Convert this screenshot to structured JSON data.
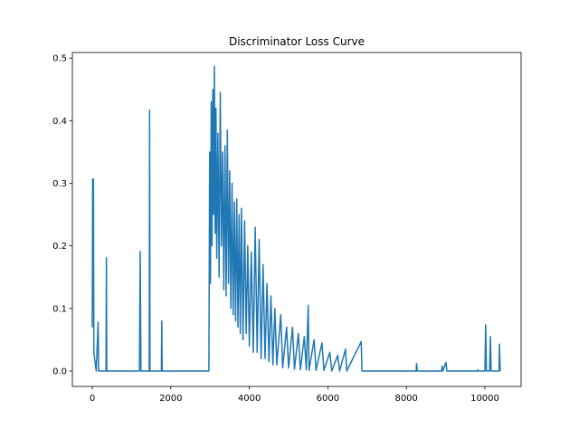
{
  "chart_data": {
    "type": "line",
    "title": "Discriminator Loss Curve",
    "color": "#1f77b4",
    "x": [
      0,
      10,
      20,
      30,
      40,
      60,
      80,
      100,
      150,
      160,
      200,
      350,
      360,
      370,
      400,
      1200,
      1220,
      1240,
      1450,
      1460,
      1470,
      1760,
      1770,
      1780,
      2970,
      2990,
      3010,
      3030,
      3050,
      3070,
      3090,
      3110,
      3130,
      3150,
      3170,
      3200,
      3230,
      3260,
      3290,
      3320,
      3350,
      3380,
      3410,
      3440,
      3470,
      3500,
      3530,
      3560,
      3590,
      3620,
      3650,
      3680,
      3710,
      3740,
      3770,
      3800,
      3840,
      3880,
      3920,
      3960,
      4000,
      4050,
      4100,
      4150,
      4200,
      4250,
      4300,
      4350,
      4400,
      4450,
      4500,
      4550,
      4600,
      4650,
      4700,
      4800,
      4850,
      4950,
      5000,
      5100,
      5150,
      5250,
      5300,
      5400,
      5450,
      5500,
      5520,
      5650,
      5700,
      5850,
      5900,
      6050,
      6100,
      6250,
      6300,
      6450,
      6480,
      6850,
      6870,
      8250,
      8260,
      8280,
      8900,
      8910,
      8930,
      9010,
      9030,
      9800,
      9810,
      9830,
      10000,
      10020,
      10040,
      10120,
      10140,
      10160,
      10360,
      10370,
      10390
    ],
    "values": [
      0.07,
      0.307,
      0.26,
      0.307,
      0.03,
      0.02,
      0.01,
      0,
      0.078,
      0,
      0,
      0,
      0.181,
      0,
      0,
      0,
      0.191,
      0,
      0,
      0.417,
      0,
      0,
      0.08,
      0,
      0,
      0.35,
      0.14,
      0.43,
      0.2,
      0.45,
      0.25,
      0.487,
      0.22,
      0.42,
      0.18,
      0.38,
      0.15,
      0.445,
      0.2,
      0.35,
      0.13,
      0.36,
      0.12,
      0.385,
      0.14,
      0.32,
      0.1,
      0.3,
      0.09,
      0.27,
      0.08,
      0.275,
      0.07,
      0.25,
      0.06,
      0.26,
      0.05,
      0.24,
      0.06,
      0.2,
      0.04,
      0.19,
      0.03,
      0.23,
      0.03,
      0.21,
      0.02,
      0.17,
      0.02,
      0.14,
      0.015,
      0.12,
      0.01,
      0.1,
      0.01,
      0.09,
      0.005,
      0.07,
      0.005,
      0.07,
      0.003,
      0.06,
      0.002,
      0.055,
      0.002,
      0.105,
      0.001,
      0.05,
      0.001,
      0.045,
      0.001,
      0.03,
      0,
      0.025,
      0,
      0.035,
      0,
      0.047,
      0,
      0,
      0.012,
      0,
      0,
      0.008,
      0,
      0.014,
      0,
      0,
      0.002,
      0,
      0,
      0.074,
      0,
      0,
      0.055,
      0,
      0,
      0.043,
      0
    ],
    "xlim": [
      -507,
      10922
    ],
    "ylim": [
      -0.0246,
      0.509
    ],
    "xticks": [
      0,
      2000,
      4000,
      6000,
      8000,
      10000
    ],
    "yticks": [
      {
        "value": 0,
        "label": "0.0"
      },
      {
        "value": 0.1,
        "label": "0.1"
      },
      {
        "value": 0.2,
        "label": "0.2"
      },
      {
        "value": 0.3,
        "label": "0.3"
      },
      {
        "value": 0.4,
        "label": "0.4"
      },
      {
        "value": 0.5,
        "label": "0.5"
      }
    ]
  }
}
